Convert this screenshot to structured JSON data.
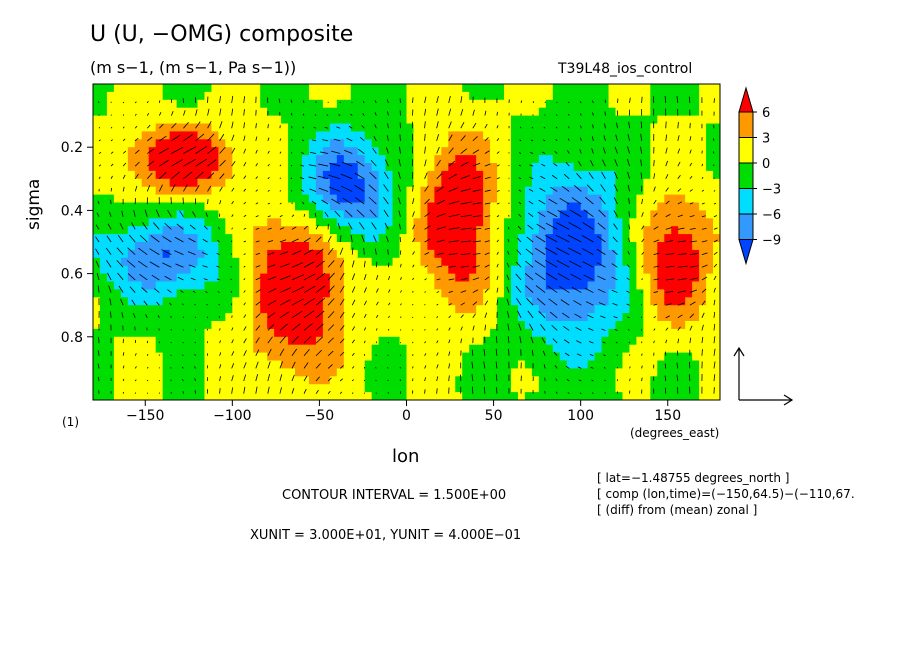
{
  "title": "U (U, −OMG) composite",
  "subtitle": "(m s−1, (m s−1, Pa s−1))",
  "run_label": "T39L48_ios_control",
  "panel_label": "(1)",
  "x_unit_label": "(degrees_east)",
  "contour_interval": "CONTOUR INTERVAL = 1.500E+00",
  "vector_units": "XUNIT = 3.000E+01, YUNIT = 4.000E−01",
  "notes": [
    "[ lat=−1.48755 degrees_north ]",
    "[ comp (lon,time)=(−150,64.5)−(−110,67.",
    "[ (diff) from (mean) zonal ]"
  ],
  "colors": {
    "level_gt6": "#ff0000",
    "level_3_6": "#ff9900",
    "level_0_3": "#ffff00",
    "level_m3_0": "#00dd00",
    "level_m6_m3": "#00ddff",
    "level_m9_m6": "#3399ff",
    "level_lt_m9": "#0044ff"
  },
  "chart_data": {
    "type": "heatmap",
    "title": "U (U, −OMG) composite",
    "xlabel": "lon",
    "ylabel": "sigma",
    "xlim": [
      -180,
      180
    ],
    "ylim": [
      1.0,
      0.0
    ],
    "y_inverted": true,
    "x_ticks": [
      -150,
      -100,
      -50,
      0,
      50,
      100,
      150
    ],
    "x_tick_labels": [
      "−150",
      "−100",
      "−50",
      "0",
      "50",
      "100",
      "150"
    ],
    "y_ticks": [
      0.2,
      0.4,
      0.6,
      0.8
    ],
    "y_tick_labels": [
      "0.2",
      "0.4",
      "0.6",
      "0.8"
    ],
    "colorbar_ticks": [
      "6",
      "3",
      "0",
      "−3",
      "−6",
      "−9"
    ],
    "overlay": "wind vectors (U, −OMG)",
    "features": [
      {
        "sign": "positive",
        "lon_range": [
          -165,
          -95
        ],
        "sigma_range": [
          0.12,
          0.36
        ],
        "peak": 7
      },
      {
        "sign": "positive",
        "lon_range": [
          -95,
          -30
        ],
        "sigma_range": [
          0.3,
          0.95
        ],
        "peak": 7
      },
      {
        "sign": "negative",
        "lon_range": [
          -70,
          -5
        ],
        "sigma_range": [
          0.14,
          0.52
        ],
        "peak": -8
      },
      {
        "sign": "positive",
        "lon_range": [
          5,
          55
        ],
        "sigma_range": [
          0.14,
          0.72
        ],
        "peak": 7
      },
      {
        "sign": "negative",
        "lon_range": [
          60,
          130
        ],
        "sigma_range": [
          0.24,
          0.85
        ],
        "peak": -8
      },
      {
        "sign": "positive",
        "lon_range": [
          130,
          178
        ],
        "sigma_range": [
          0.32,
          0.78
        ],
        "peak": 6
      },
      {
        "sign": "negative",
        "lon_range": [
          -180,
          -100
        ],
        "sigma_range": [
          0.4,
          0.7
        ],
        "peak": -6
      }
    ]
  }
}
